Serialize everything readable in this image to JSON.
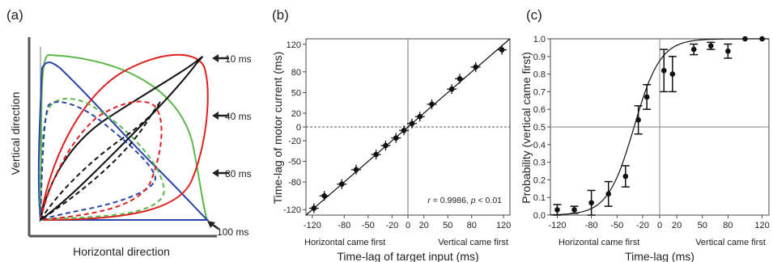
{
  "chart_data": [
    {
      "panel": "(a)",
      "type": "line",
      "xlabel": "Horizontal direction",
      "ylabel": "Vertical direction",
      "annotations": [
        "10 ms",
        "40 ms",
        "80 ms",
        "100 ms"
      ],
      "colors": {
        "green": "#5cb84a",
        "red": "#e02020",
        "black": "#111111",
        "blue": "#2a44a8"
      }
    },
    {
      "panel": "(b)",
      "type": "scatter",
      "xlabel": "Time-lag of target input (ms)",
      "ylabel": "Time-lag of motor current (ms)",
      "xlim": [
        -128,
        128
      ],
      "ylim": [
        -128,
        128
      ],
      "xticks": [
        "-120",
        "-80",
        "-50",
        "-20",
        "0",
        "20",
        "50",
        "80",
        "120"
      ],
      "xtick_values": [
        -120,
        -80,
        -50,
        -20,
        0,
        20,
        50,
        80,
        120
      ],
      "yticks": [
        "120",
        "80",
        "50",
        "20",
        "0",
        "-20",
        "-50",
        "-80",
        "-120"
      ],
      "ytick_values": [
        120,
        80,
        50,
        20,
        0,
        -20,
        -50,
        -80,
        -120
      ],
      "x_side_labels": [
        "Horizontal came first",
        "Vertical came first"
      ],
      "stat_label": {
        "r": "r",
        "r_text": " = 0.9986, ",
        "p": "p",
        "p_text": " < 0.01"
      },
      "points": [
        {
          "x": -118,
          "y": -118
        },
        {
          "x": -105,
          "y": -100
        },
        {
          "x": -83,
          "y": -83
        },
        {
          "x": -65,
          "y": -62
        },
        {
          "x": -40,
          "y": -40
        },
        {
          "x": -28,
          "y": -27
        },
        {
          "x": -15,
          "y": -16
        },
        {
          "x": -5,
          "y": -5
        },
        {
          "x": 5,
          "y": 5
        },
        {
          "x": 15,
          "y": 15
        },
        {
          "x": 30,
          "y": 33
        },
        {
          "x": 55,
          "y": 55
        },
        {
          "x": 65,
          "y": 70
        },
        {
          "x": 85,
          "y": 87
        },
        {
          "x": 118,
          "y": 112
        }
      ],
      "fit": {
        "x": [
          -128,
          128
        ],
        "y": [
          -128,
          128
        ]
      }
    },
    {
      "panel": "(c)",
      "type": "scatter",
      "xlabel": "Time-lag (ms)",
      "ylabel": "Probability (vertical came first)",
      "xlim": [
        -128,
        128
      ],
      "ylim": [
        0,
        1.0
      ],
      "xticks": [
        "-120",
        "-80",
        "-50",
        "-20",
        "0",
        "20",
        "50",
        "80",
        "120"
      ],
      "xtick_values": [
        -120,
        -80,
        -50,
        -20,
        0,
        20,
        50,
        80,
        120
      ],
      "yticks": [
        "1.0",
        "0.9",
        "0.8",
        "0.7",
        "0.6",
        "0.5",
        "0.4",
        "0.3",
        "0.2",
        "0.1",
        "0.0"
      ],
      "ytick_values": [
        1.0,
        0.9,
        0.8,
        0.7,
        0.6,
        0.5,
        0.4,
        0.3,
        0.2,
        0.1,
        0.0
      ],
      "x_side_labels": [
        "Horizontal came first",
        "Vertical came first"
      ],
      "threshold": 0.5,
      "points": [
        {
          "x": -120,
          "y": 0.03,
          "err": 0.03
        },
        {
          "x": -100,
          "y": 0.03,
          "err": 0.02
        },
        {
          "x": -80,
          "y": 0.07,
          "err": 0.07
        },
        {
          "x": -60,
          "y": 0.12,
          "err": 0.07
        },
        {
          "x": -40,
          "y": 0.22,
          "err": 0.06
        },
        {
          "x": -25,
          "y": 0.54,
          "err": 0.08
        },
        {
          "x": -15,
          "y": 0.67,
          "err": 0.07
        },
        {
          "x": 5,
          "y": 0.82,
          "err": 0.12
        },
        {
          "x": 15,
          "y": 0.8,
          "err": 0.1
        },
        {
          "x": 40,
          "y": 0.94,
          "err": 0.03
        },
        {
          "x": 60,
          "y": 0.96,
          "err": 0.02
        },
        {
          "x": 80,
          "y": 0.93,
          "err": 0.04
        },
        {
          "x": 100,
          "y": 1.0,
          "err": 0
        },
        {
          "x": 120,
          "y": 1.0,
          "err": 0
        }
      ],
      "fit": {
        "type": "sigmoid",
        "x0": -30,
        "k": 0.065
      }
    }
  ]
}
